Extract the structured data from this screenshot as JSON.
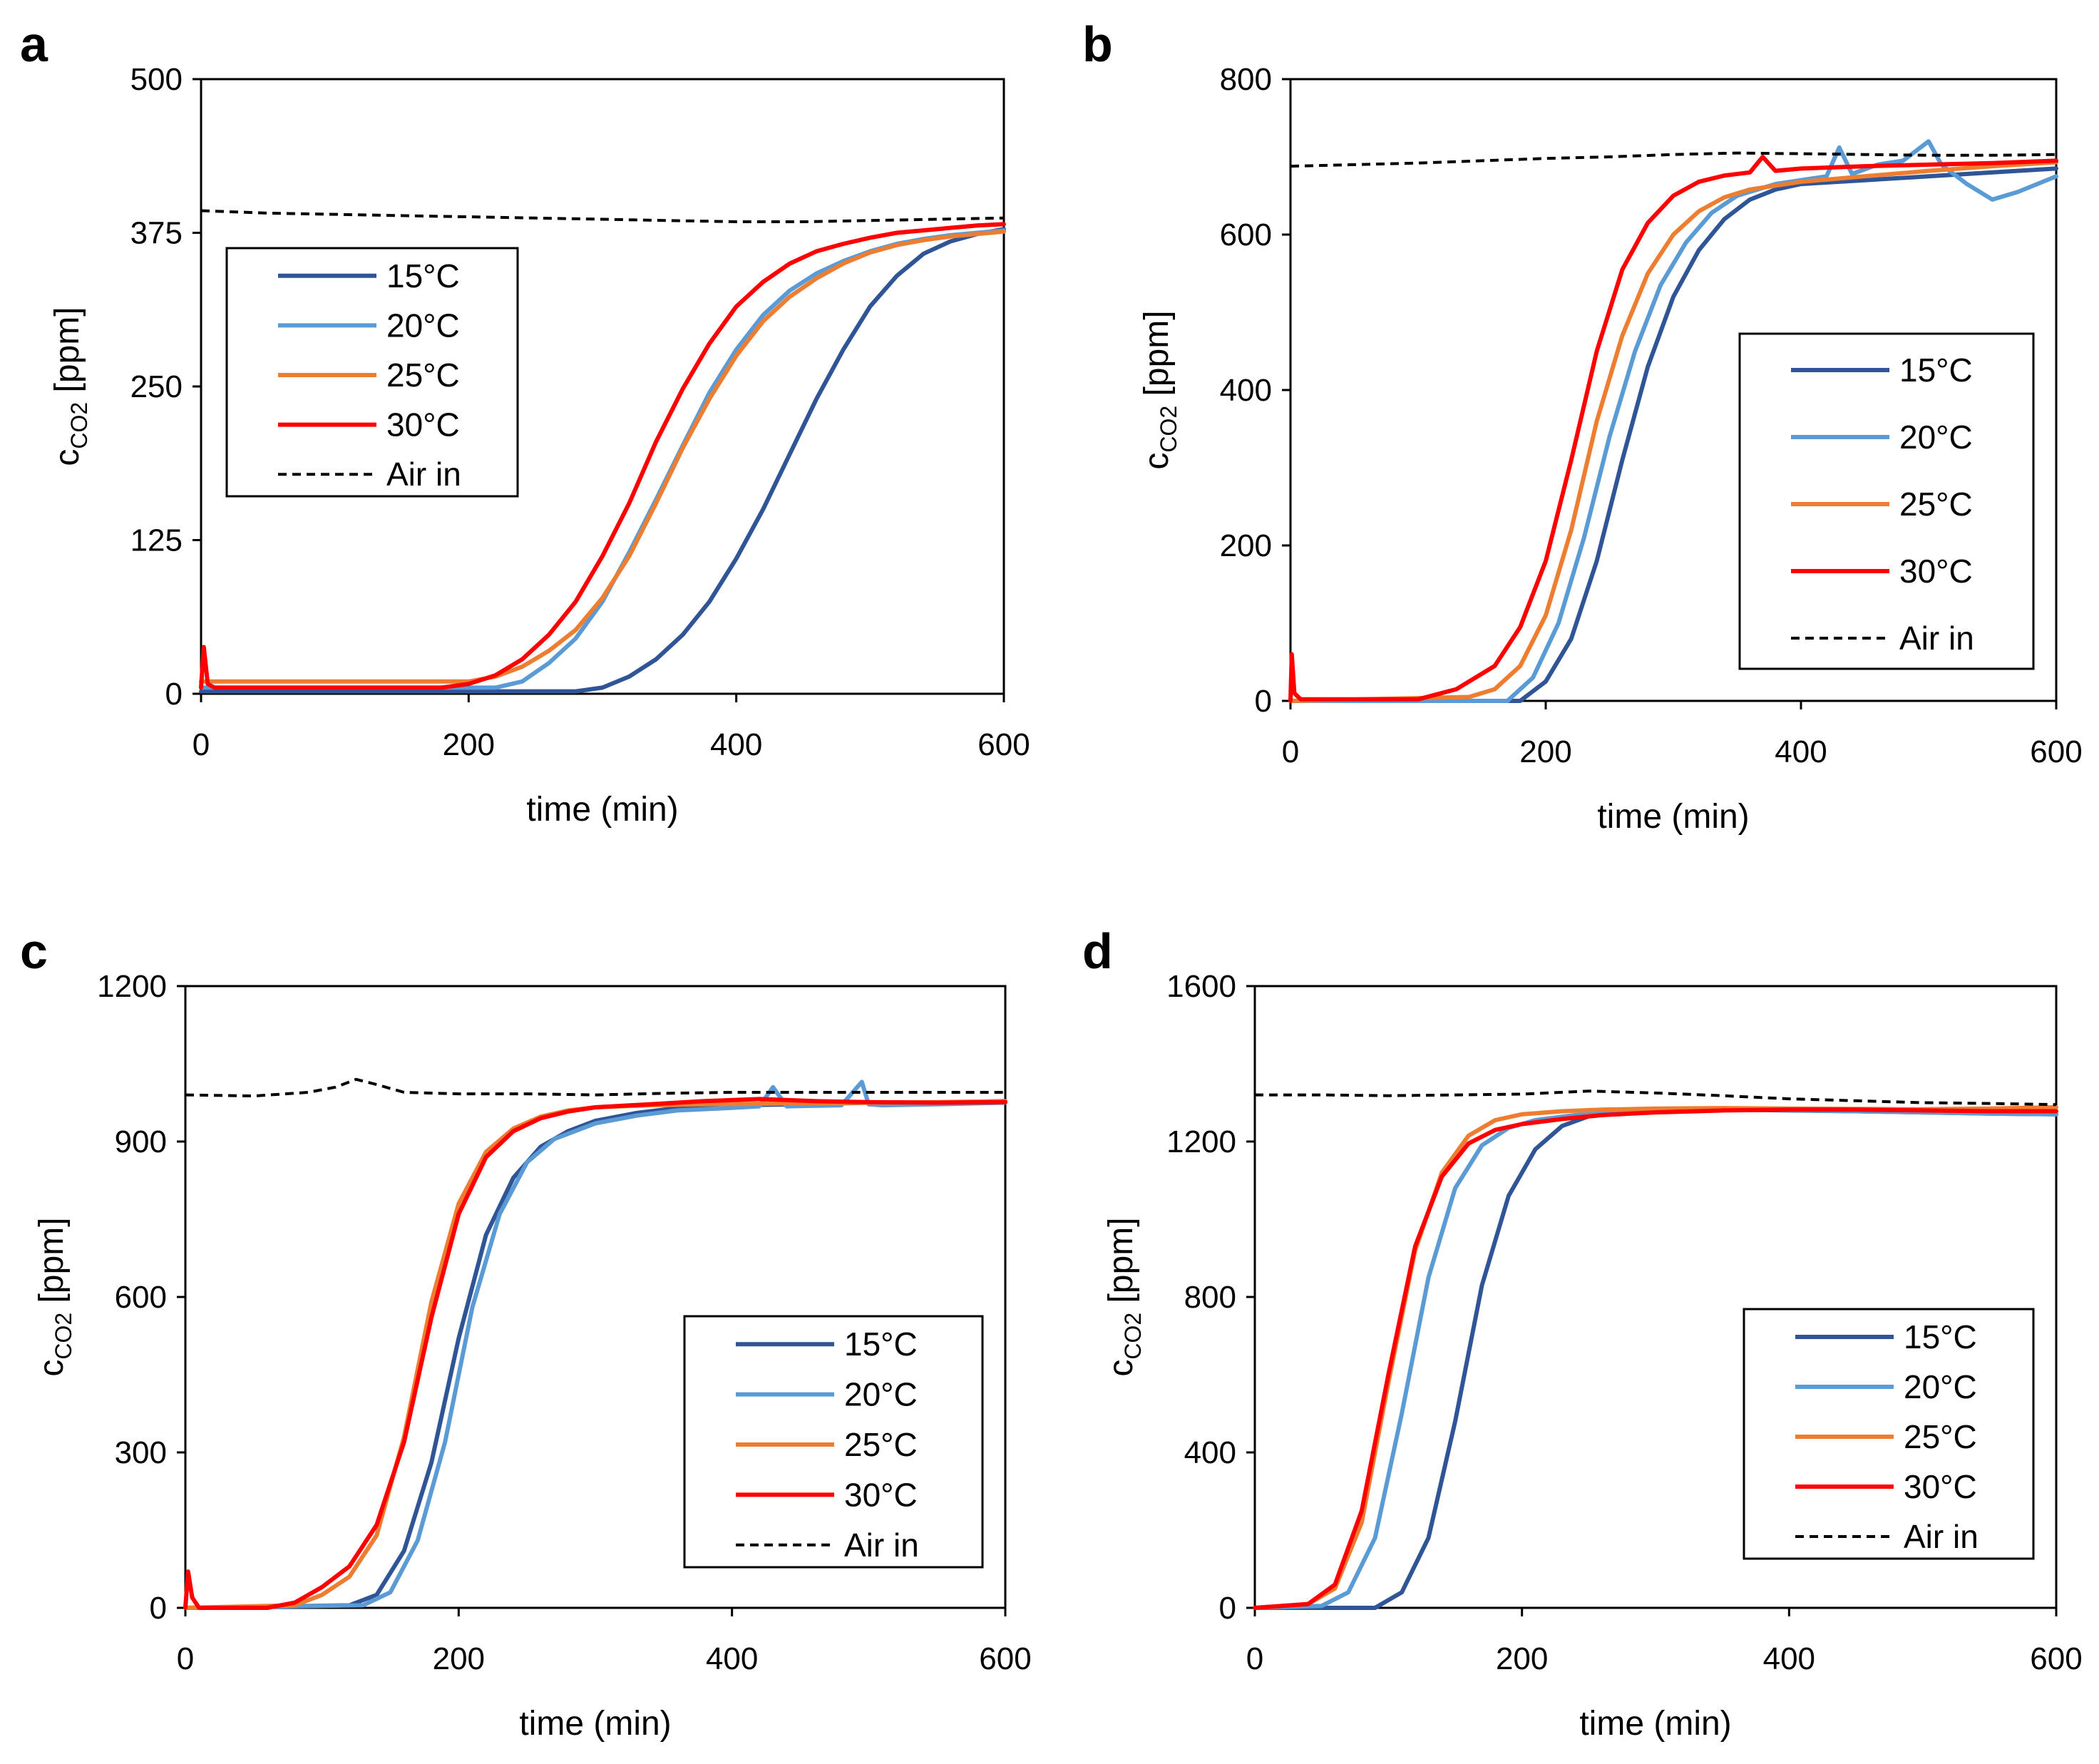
{
  "chart_data": [
    {
      "panel": "a",
      "type": "line",
      "xlabel": "time (min)",
      "ylabel_main": "c",
      "ylabel_sub": "CO2",
      "ylabel_unit": " [ppm]",
      "xlim": [
        0,
        600
      ],
      "ylim": [
        0,
        500
      ],
      "xticks": [
        0,
        200,
        400,
        600
      ],
      "yticks": [
        0,
        125,
        250,
        375,
        500
      ],
      "legend": "upper-left",
      "series": [
        {
          "name": "15°C",
          "color": "#2f5597",
          "style": "solid",
          "x": [
            0,
            280,
            300,
            320,
            340,
            360,
            380,
            400,
            420,
            440,
            460,
            480,
            500,
            520,
            540,
            560,
            580,
            600
          ],
          "y": [
            2,
            2,
            5,
            14,
            28,
            48,
            75,
            110,
            150,
            195,
            240,
            280,
            315,
            340,
            358,
            368,
            374,
            378
          ]
        },
        {
          "name": "20°C",
          "color": "#5b9bd5",
          "style": "solid",
          "x": [
            0,
            220,
            240,
            260,
            280,
            300,
            320,
            340,
            360,
            380,
            400,
            420,
            440,
            460,
            480,
            500,
            520,
            540,
            560,
            580,
            600
          ],
          "y": [
            5,
            5,
            10,
            25,
            45,
            75,
            115,
            158,
            202,
            245,
            280,
            308,
            328,
            342,
            352,
            360,
            366,
            370,
            373,
            375,
            377
          ]
        },
        {
          "name": "25°C",
          "color": "#ed7d31",
          "style": "solid",
          "x": [
            0,
            200,
            220,
            240,
            260,
            280,
            300,
            320,
            340,
            360,
            380,
            400,
            420,
            440,
            460,
            480,
            500,
            520,
            540,
            560,
            580,
            600
          ],
          "y": [
            10,
            10,
            14,
            22,
            35,
            52,
            78,
            112,
            155,
            200,
            240,
            275,
            303,
            323,
            338,
            350,
            359,
            365,
            369,
            372,
            374,
            376
          ]
        },
        {
          "name": "30°C",
          "color": "#ff0000",
          "style": "solid",
          "x": [
            0,
            2,
            5,
            10,
            180,
            200,
            220,
            240,
            260,
            280,
            300,
            320,
            340,
            360,
            380,
            400,
            420,
            440,
            460,
            480,
            500,
            520,
            540,
            560,
            580,
            600
          ],
          "y": [
            5,
            38,
            8,
            5,
            5,
            8,
            15,
            28,
            48,
            75,
            112,
            155,
            205,
            248,
            285,
            315,
            335,
            350,
            360,
            366,
            371,
            375,
            377,
            379,
            381,
            382
          ]
        },
        {
          "name": "Air in",
          "color": "#000000",
          "style": "dashed",
          "x": [
            0,
            50,
            100,
            150,
            200,
            250,
            300,
            350,
            400,
            450,
            500,
            550,
            600
          ],
          "y": [
            393,
            391,
            390,
            389,
            388,
            387,
            386,
            385,
            384,
            384,
            385,
            386,
            387
          ]
        }
      ]
    },
    {
      "panel": "b",
      "type": "line",
      "xlabel": "time (min)",
      "ylabel_main": "c",
      "ylabel_sub": "CO2",
      "ylabel_unit": " [ppm]",
      "xlim": [
        0,
        600
      ],
      "ylim": [
        0,
        800
      ],
      "xticks": [
        0,
        200,
        400,
        600
      ],
      "yticks": [
        0,
        200,
        400,
        600,
        800
      ],
      "legend": "lower-right",
      "series": [
        {
          "name": "15°C",
          "color": "#2f5597",
          "style": "solid",
          "x": [
            0,
            180,
            200,
            220,
            240,
            260,
            280,
            300,
            320,
            340,
            360,
            380,
            400,
            450,
            500,
            550,
            600
          ],
          "y": [
            0,
            0,
            25,
            80,
            180,
            310,
            430,
            520,
            580,
            620,
            645,
            658,
            665,
            670,
            675,
            680,
            685
          ]
        },
        {
          "name": "20°C",
          "color": "#5b9bd5",
          "style": "solid",
          "x": [
            0,
            170,
            190,
            210,
            230,
            250,
            270,
            290,
            310,
            330,
            350,
            380,
            420,
            430,
            440,
            460,
            480,
            500,
            510,
            530,
            550,
            570,
            600
          ],
          "y": [
            0,
            0,
            30,
            100,
            210,
            340,
            450,
            535,
            590,
            628,
            650,
            665,
            675,
            712,
            678,
            690,
            695,
            720,
            690,
            665,
            645,
            655,
            675
          ]
        },
        {
          "name": "25°C",
          "color": "#ed7d31",
          "style": "solid",
          "x": [
            0,
            140,
            160,
            180,
            200,
            220,
            240,
            260,
            280,
            300,
            320,
            340,
            360,
            400,
            450,
            500,
            550,
            600
          ],
          "y": [
            0,
            5,
            15,
            45,
            110,
            220,
            360,
            470,
            550,
            600,
            630,
            648,
            658,
            668,
            675,
            682,
            688,
            693
          ]
        },
        {
          "name": "30°C",
          "color": "#ff0000",
          "style": "solid",
          "x": [
            0,
            1,
            3,
            8,
            100,
            130,
            160,
            180,
            200,
            220,
            240,
            260,
            280,
            300,
            320,
            340,
            360,
            370,
            380,
            400,
            450,
            500,
            550,
            600
          ],
          "y": [
            0,
            60,
            10,
            2,
            2,
            15,
            45,
            95,
            180,
            310,
            450,
            555,
            615,
            650,
            668,
            676,
            680,
            700,
            682,
            685,
            688,
            690,
            692,
            695
          ]
        },
        {
          "name": "Air in",
          "color": "#000000",
          "style": "dashed",
          "x": [
            0,
            50,
            100,
            150,
            200,
            250,
            300,
            350,
            400,
            450,
            500,
            550,
            600
          ],
          "y": [
            688,
            690,
            692,
            695,
            698,
            700,
            703,
            705,
            704,
            703,
            702,
            702,
            703
          ]
        }
      ]
    },
    {
      "panel": "c",
      "type": "line",
      "xlabel": "time (min)",
      "ylabel_main": "c",
      "ylabel_sub": "CO2",
      "ylabel_unit": " [ppm]",
      "xlim": [
        0,
        600
      ],
      "ylim": [
        0,
        1200
      ],
      "xticks": [
        0,
        200,
        400,
        600
      ],
      "yticks": [
        0,
        300,
        600,
        900,
        1200
      ],
      "legend": "lower-right",
      "series": [
        {
          "name": "15°C",
          "color": "#2f5597",
          "style": "solid",
          "x": [
            0,
            120,
            140,
            160,
            180,
            200,
            220,
            240,
            260,
            280,
            300,
            330,
            360,
            400,
            450,
            500,
            550,
            600
          ],
          "y": [
            0,
            5,
            25,
            110,
            280,
            520,
            720,
            830,
            890,
            920,
            940,
            955,
            965,
            970,
            972,
            975,
            975,
            978
          ]
        },
        {
          "name": "20°C",
          "color": "#5b9bd5",
          "style": "solid",
          "x": [
            0,
            130,
            150,
            170,
            190,
            210,
            230,
            250,
            270,
            300,
            330,
            360,
            400,
            420,
            430,
            440,
            480,
            495,
            500,
            510,
            550,
            600
          ],
          "y": [
            0,
            5,
            30,
            130,
            320,
            580,
            760,
            860,
            905,
            935,
            950,
            960,
            965,
            968,
            1005,
            968,
            970,
            1015,
            972,
            970,
            972,
            975
          ]
        },
        {
          "name": "25°C",
          "color": "#ed7d31",
          "style": "solid",
          "x": [
            0,
            80,
            100,
            120,
            140,
            160,
            180,
            200,
            220,
            240,
            260,
            280,
            300,
            340,
            380,
            420,
            460,
            500,
            550,
            600
          ],
          "y": [
            0,
            5,
            25,
            60,
            140,
            330,
            590,
            780,
            880,
            925,
            948,
            960,
            966,
            970,
            972,
            973,
            974,
            975,
            976,
            978
          ]
        },
        {
          "name": "30°C",
          "color": "#ff0000",
          "style": "solid",
          "x": [
            0,
            2,
            5,
            10,
            60,
            80,
            100,
            120,
            140,
            160,
            180,
            200,
            220,
            240,
            260,
            280,
            300,
            340,
            380,
            420,
            460,
            500,
            550,
            600
          ],
          "y": [
            0,
            70,
            20,
            0,
            0,
            10,
            40,
            80,
            160,
            320,
            560,
            760,
            870,
            920,
            945,
            958,
            966,
            972,
            978,
            982,
            978,
            976,
            975,
            976
          ]
        },
        {
          "name": "Air in",
          "color": "#000000",
          "style": "dashed",
          "x": [
            0,
            50,
            90,
            110,
            125,
            140,
            160,
            200,
            250,
            300,
            350,
            400,
            450,
            500,
            550,
            600
          ],
          "y": [
            990,
            988,
            995,
            1005,
            1020,
            1010,
            995,
            992,
            992,
            990,
            993,
            995,
            995,
            995,
            995,
            995
          ]
        }
      ]
    },
    {
      "panel": "d",
      "type": "line",
      "xlabel": "time (min)",
      "ylabel_main": "c",
      "ylabel_sub": "CO2",
      "ylabel_unit": " [ppm]",
      "xlim": [
        0,
        600
      ],
      "ylim": [
        0,
        1600
      ],
      "xticks": [
        0,
        200,
        400,
        600
      ],
      "yticks": [
        0,
        400,
        800,
        1200,
        1600
      ],
      "legend": "lower-right",
      "series": [
        {
          "name": "15°C",
          "color": "#2f5597",
          "style": "solid",
          "x": [
            0,
            90,
            110,
            130,
            150,
            170,
            190,
            210,
            230,
            250,
            280,
            320,
            360,
            400,
            450,
            500,
            550,
            600
          ],
          "y": [
            0,
            0,
            40,
            180,
            480,
            830,
            1060,
            1180,
            1240,
            1265,
            1275,
            1280,
            1282,
            1280,
            1278,
            1275,
            1272,
            1270
          ]
        },
        {
          "name": "20°C",
          "color": "#5b9bd5",
          "style": "solid",
          "x": [
            0,
            50,
            70,
            90,
            110,
            130,
            150,
            170,
            190,
            210,
            240,
            280,
            330,
            380,
            450,
            500,
            550,
            600
          ],
          "y": [
            0,
            5,
            40,
            180,
            500,
            850,
            1080,
            1190,
            1235,
            1255,
            1268,
            1275,
            1280,
            1282,
            1278,
            1275,
            1272,
            1270
          ]
        },
        {
          "name": "25°C",
          "color": "#ed7d31",
          "style": "solid",
          "x": [
            0,
            40,
            60,
            80,
            100,
            120,
            140,
            160,
            180,
            200,
            230,
            260,
            300,
            350,
            400,
            450,
            500,
            550,
            600
          ],
          "y": [
            0,
            10,
            50,
            220,
            580,
            920,
            1120,
            1215,
            1255,
            1270,
            1278,
            1282,
            1285,
            1286,
            1285,
            1284,
            1283,
            1285,
            1288
          ]
        },
        {
          "name": "30°C",
          "color": "#ff0000",
          "style": "solid",
          "x": [
            0,
            40,
            60,
            80,
            100,
            120,
            140,
            160,
            180,
            200,
            230,
            260,
            300,
            350,
            400,
            450,
            500,
            550,
            600
          ],
          "y": [
            0,
            10,
            60,
            250,
            600,
            930,
            1110,
            1195,
            1230,
            1245,
            1258,
            1268,
            1275,
            1280,
            1282,
            1282,
            1280,
            1278,
            1278
          ]
        },
        {
          "name": "Air in",
          "color": "#000000",
          "style": "dashed",
          "x": [
            0,
            50,
            100,
            150,
            200,
            250,
            300,
            350,
            400,
            450,
            500,
            550,
            600
          ],
          "y": [
            1320,
            1320,
            1318,
            1320,
            1322,
            1330,
            1325,
            1318,
            1310,
            1305,
            1300,
            1298,
            1295
          ]
        }
      ]
    }
  ]
}
